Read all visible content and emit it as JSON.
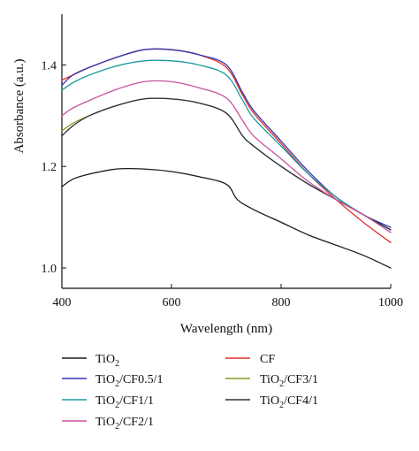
{
  "chart_data": {
    "type": "line",
    "title": "",
    "xlabel": "Wavelength (nm)",
    "ylabel": "Absorbance (a.u.)",
    "xlim": [
      400,
      1000
    ],
    "ylim": [
      0.96,
      1.5
    ],
    "xticks": [
      400,
      600,
      800,
      1000
    ],
    "yticks": [
      1.0,
      1.2,
      1.4
    ],
    "xtick_labels": [
      "400",
      "600",
      "800",
      "1000"
    ],
    "ytick_labels": [
      "1.0",
      "1.2",
      "1.4"
    ],
    "grid": false,
    "legend_position": "bottom",
    "series": [
      {
        "name": "TiO2",
        "color": "#1a1a1a",
        "x": [
          400,
          420,
          450,
          500,
          550,
          600,
          650,
          700,
          720,
          750,
          800,
          850,
          900,
          950,
          1000
        ],
        "y": [
          1.16,
          1.175,
          1.185,
          1.195,
          1.195,
          1.19,
          1.18,
          1.165,
          1.135,
          1.115,
          1.09,
          1.065,
          1.045,
          1.025,
          1.0
        ]
      },
      {
        "name": "CF",
        "color": "#e0302a",
        "x": [
          400,
          420,
          450,
          500,
          550,
          600,
          650,
          700,
          730,
          750,
          800,
          850,
          900,
          950,
          1000
        ],
        "y": [
          1.37,
          1.38,
          1.395,
          1.415,
          1.43,
          1.43,
          1.42,
          1.395,
          1.34,
          1.305,
          1.245,
          1.185,
          1.135,
          1.09,
          1.05
        ]
      },
      {
        "name": "TiO2/CF0.5/1",
        "color": "#3434b0",
        "x": [
          400,
          420,
          450,
          500,
          550,
          600,
          650,
          700,
          730,
          750,
          800,
          850,
          900,
          950,
          1000
        ],
        "y": [
          1.36,
          1.38,
          1.395,
          1.415,
          1.43,
          1.43,
          1.42,
          1.4,
          1.345,
          1.31,
          1.25,
          1.19,
          1.14,
          1.105,
          1.08
        ]
      },
      {
        "name": "TiO2/CF3/1",
        "color": "#8a9a22",
        "x": [
          400,
          420,
          450,
          500,
          550,
          600,
          650,
          700,
          730,
          750,
          800,
          850,
          900,
          950,
          1000
        ],
        "y": [
          1.27,
          1.285,
          1.3,
          1.32,
          1.333,
          1.333,
          1.325,
          1.305,
          1.26,
          1.24,
          1.2,
          1.165,
          1.135,
          1.105,
          1.075
        ]
      },
      {
        "name": "TiO2/CF1/1",
        "color": "#1e9aa0",
        "x": [
          400,
          420,
          450,
          500,
          550,
          600,
          650,
          700,
          730,
          750,
          800,
          850,
          900,
          950,
          1000
        ],
        "y": [
          1.35,
          1.365,
          1.38,
          1.398,
          1.408,
          1.408,
          1.4,
          1.38,
          1.33,
          1.295,
          1.24,
          1.185,
          1.14,
          1.105,
          1.075
        ]
      },
      {
        "name": "TiO2/CF4/1",
        "color": "#2e2e40",
        "x": [
          400,
          420,
          450,
          500,
          550,
          600,
          650,
          700,
          730,
          750,
          800,
          850,
          900,
          950,
          1000
        ],
        "y": [
          1.26,
          1.28,
          1.3,
          1.32,
          1.333,
          1.333,
          1.325,
          1.305,
          1.26,
          1.24,
          1.2,
          1.165,
          1.135,
          1.105,
          1.075
        ]
      },
      {
        "name": "TiO2/CF2/1",
        "color": "#c8529e",
        "x": [
          400,
          420,
          450,
          500,
          550,
          600,
          650,
          700,
          730,
          750,
          800,
          850,
          900,
          950,
          1000
        ],
        "y": [
          1.3,
          1.315,
          1.33,
          1.352,
          1.367,
          1.367,
          1.355,
          1.335,
          1.29,
          1.26,
          1.215,
          1.17,
          1.135,
          1.105,
          1.07
        ]
      }
    ],
    "legend": [
      {
        "series": 0,
        "base": "TiO",
        "sub": "2",
        "rest": ""
      },
      {
        "series": 1,
        "base": "CF",
        "sub": "",
        "rest": ""
      },
      {
        "series": 2,
        "base": "TiO",
        "sub": "2",
        "rest": "/CF0.5/1"
      },
      {
        "series": 3,
        "base": "TiO",
        "sub": "2",
        "rest": "/CF3/1"
      },
      {
        "series": 4,
        "base": "TiO",
        "sub": "2",
        "rest": "/CF1/1"
      },
      {
        "series": 5,
        "base": "TiO",
        "sub": "2",
        "rest": "/CF4/1"
      },
      {
        "series": 6,
        "base": "TiO",
        "sub": "2",
        "rest": "/CF2/1"
      }
    ]
  }
}
